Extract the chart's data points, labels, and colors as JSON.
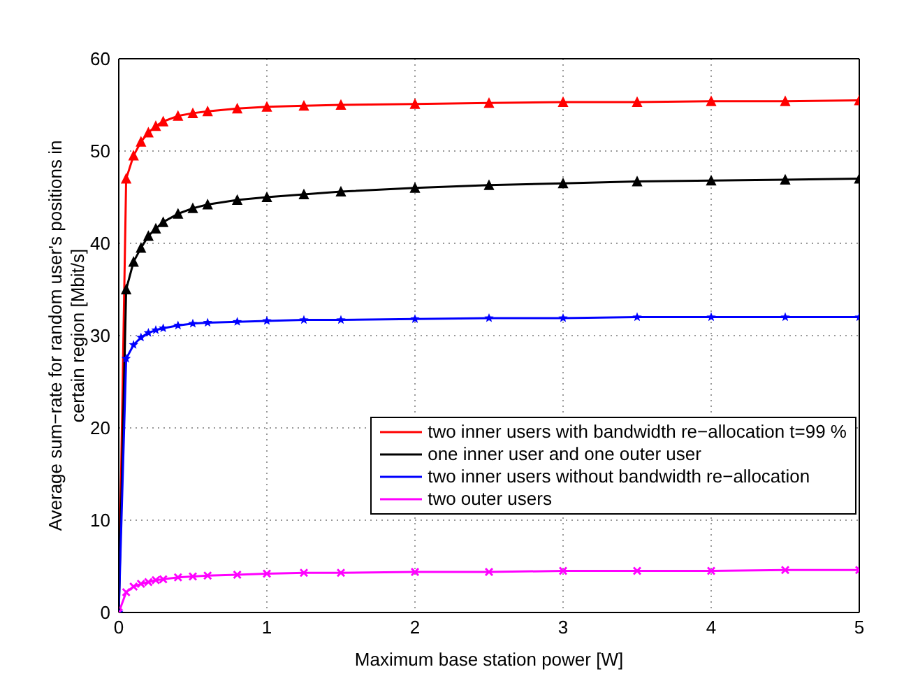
{
  "chart_data": {
    "type": "line",
    "xlabel": "Maximum base station power [W]",
    "ylabel": "Average sum−rate for random user's positions in certain region [Mbit/s]",
    "x": [
      0,
      0.05,
      0.1,
      0.15,
      0.2,
      0.25,
      0.3,
      0.4,
      0.5,
      0.6,
      0.8,
      1,
      1.25,
      1.5,
      2,
      2.5,
      3,
      3.5,
      4,
      4.5,
      5
    ],
    "series": [
      {
        "name": "two inner users with bandwidth re−allocation t=99 %",
        "color": "#ff0000",
        "marker": "triangle",
        "values": [
          0,
          47,
          49.5,
          51,
          52,
          52.7,
          53.2,
          53.8,
          54.1,
          54.3,
          54.6,
          54.8,
          54.9,
          55,
          55.1,
          55.2,
          55.3,
          55.3,
          55.4,
          55.4,
          55.5
        ]
      },
      {
        "name": "one inner user and one outer user",
        "color": "#000000",
        "marker": "triangle",
        "values": [
          0,
          35,
          38,
          39.5,
          40.8,
          41.6,
          42.3,
          43.2,
          43.8,
          44.2,
          44.7,
          45,
          45.3,
          45.6,
          46,
          46.3,
          46.5,
          46.7,
          46.8,
          46.9,
          47
        ]
      },
      {
        "name": "two inner users without bandwidth re−allocation",
        "color": "#0000ff",
        "marker": "star",
        "values": [
          0,
          27.5,
          29,
          29.8,
          30.3,
          30.6,
          30.8,
          31.1,
          31.3,
          31.4,
          31.5,
          31.6,
          31.7,
          31.7,
          31.8,
          31.9,
          31.9,
          32,
          32,
          32,
          32
        ]
      },
      {
        "name": "two outer users",
        "color": "#ff00ff",
        "marker": "cross",
        "values": [
          0,
          2.2,
          2.8,
          3.1,
          3.3,
          3.5,
          3.6,
          3.8,
          3.9,
          4,
          4.1,
          4.2,
          4.3,
          4.3,
          4.4,
          4.4,
          4.5,
          4.5,
          4.5,
          4.6,
          4.6
        ]
      }
    ],
    "xlim": [
      0,
      5
    ],
    "xticks": [
      0,
      1,
      2,
      3,
      4,
      5
    ],
    "ylim": [
      0,
      60
    ],
    "yticks": [
      0,
      10,
      20,
      30,
      40,
      50,
      60
    ],
    "grid": true,
    "legend": "bottom right",
    "line_style": "solid"
  }
}
